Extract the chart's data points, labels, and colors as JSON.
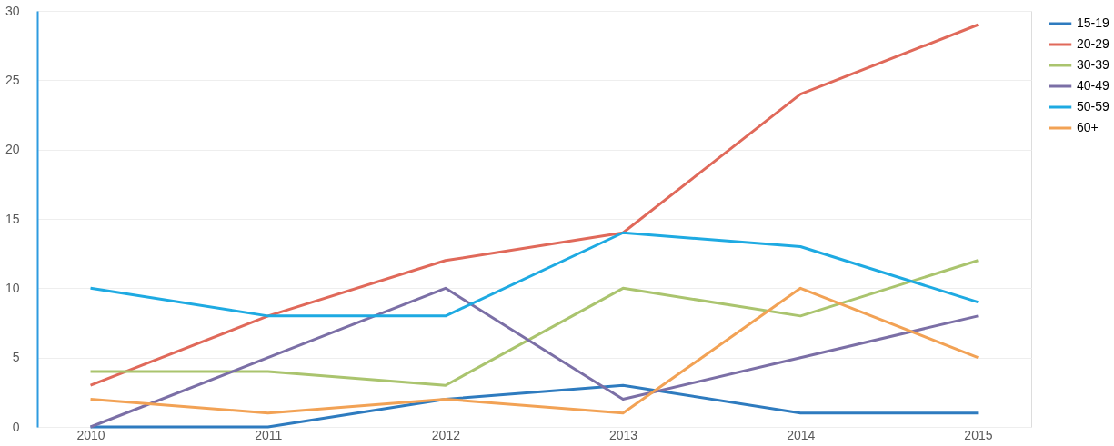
{
  "chart_data": {
    "type": "line",
    "categories": [
      "2010",
      "2011",
      "2012",
      "2013",
      "2014",
      "2015"
    ],
    "series": [
      {
        "name": "15-19",
        "color": "#2e7bbf",
        "values": [
          0,
          0,
          2,
          3,
          1,
          1
        ]
      },
      {
        "name": "20-29",
        "color": "#e0695a",
        "values": [
          3,
          8,
          12,
          14,
          24,
          29
        ]
      },
      {
        "name": "30-39",
        "color": "#aac46e",
        "values": [
          4,
          4,
          3,
          10,
          8,
          12
        ]
      },
      {
        "name": "40-49",
        "color": "#7b6fa6",
        "values": [
          0,
          5,
          10,
          2,
          5,
          8
        ]
      },
      {
        "name": "50-59",
        "color": "#1eaae2",
        "values": [
          10,
          8,
          8,
          14,
          13,
          9
        ]
      },
      {
        "name": "60+",
        "color": "#f2a255",
        "values": [
          2,
          1,
          2,
          1,
          10,
          5
        ]
      }
    ],
    "ylim": [
      0,
      30
    ],
    "yticks": [
      0,
      5,
      10,
      15,
      20,
      25,
      30
    ],
    "grid": "y",
    "legend": "right",
    "marker": "none",
    "line_style": "solid"
  }
}
